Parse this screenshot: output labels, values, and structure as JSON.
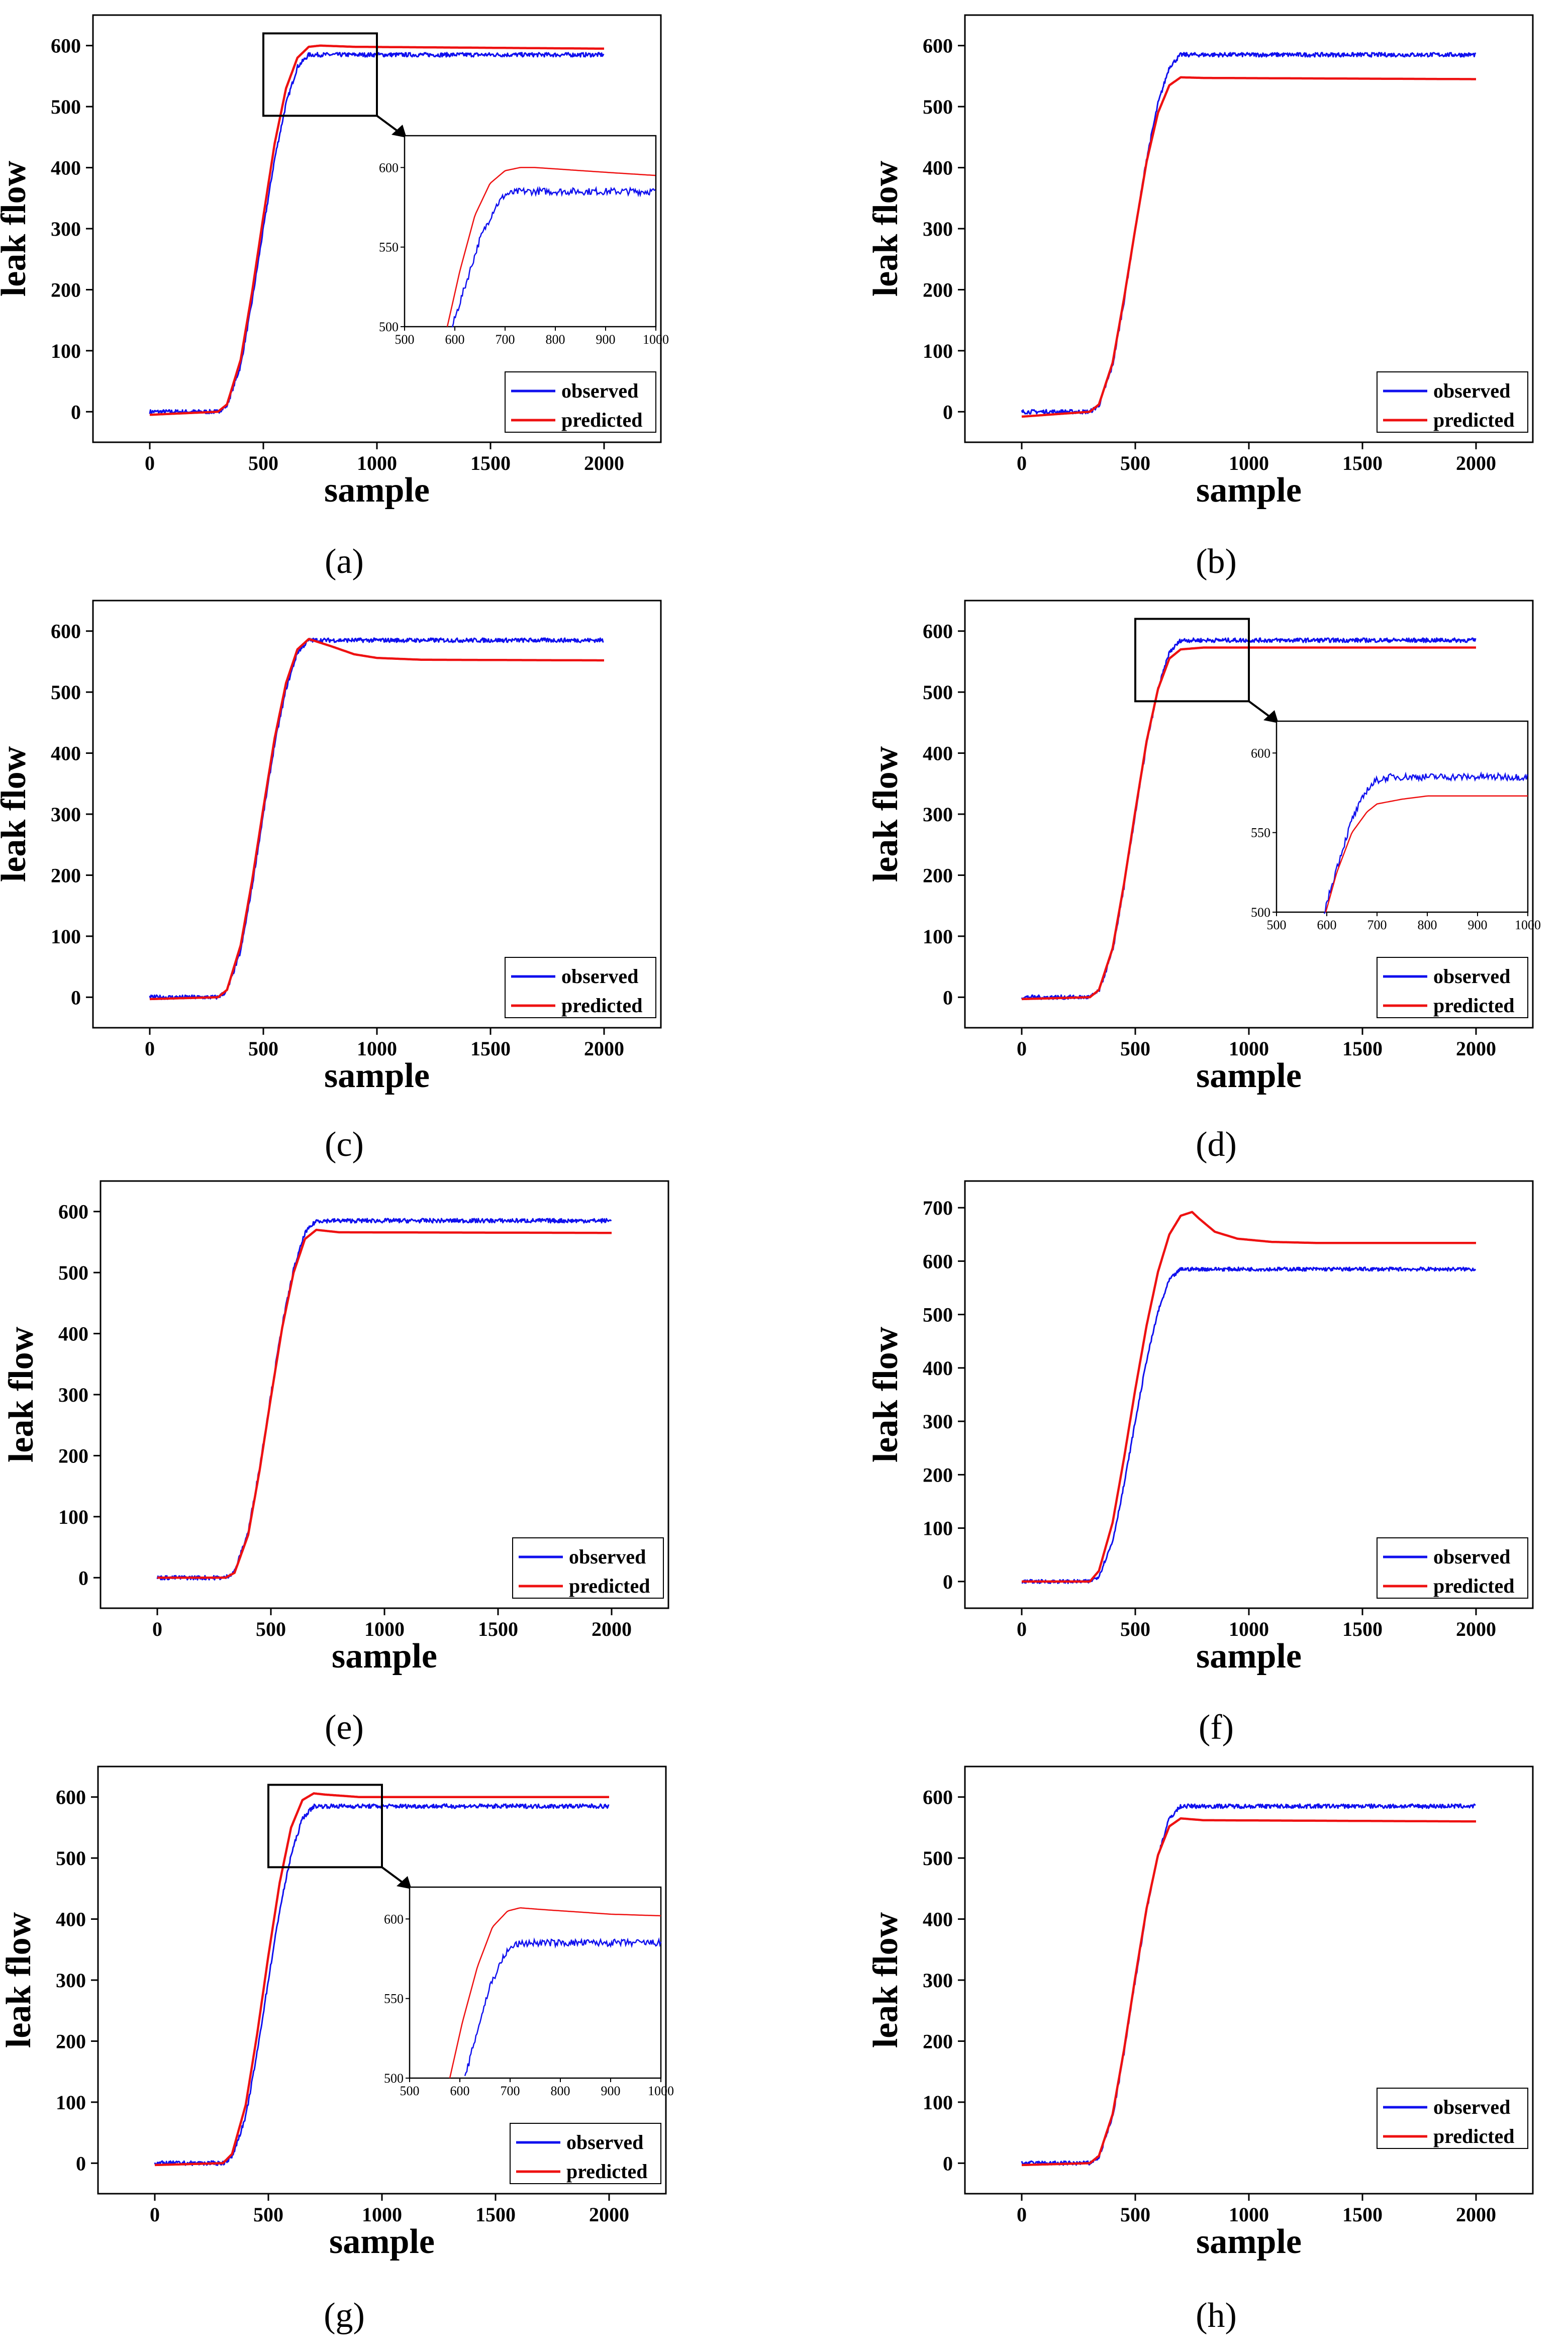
{
  "colors": {
    "observed": "#1010ee",
    "predicted": "#ee1111",
    "axis": "#000000",
    "background": "#ffffff"
  },
  "chart_data": [
    {
      "id": "a",
      "type": "line",
      "caption": "(a)",
      "xlabel": "sample",
      "ylabel": "leak flow",
      "xlim": [
        -250,
        2250
      ],
      "ylim": [
        -50,
        650
      ],
      "xticks": [
        0,
        500,
        1000,
        1500,
        2000
      ],
      "yticks": [
        0,
        100,
        200,
        300,
        400,
        500,
        600
      ],
      "legend": "bottom-right",
      "grid": false,
      "series": [
        {
          "name": "observed",
          "x": [
            0,
            300,
            340,
            400,
            450,
            500,
            550,
            600,
            650,
            700,
            2000
          ],
          "y": [
            0,
            0,
            10,
            75,
            180,
            300,
            415,
            505,
            565,
            585,
            585
          ]
        },
        {
          "name": "predicted",
          "x": [
            0,
            300,
            340,
            400,
            450,
            500,
            550,
            600,
            650,
            700,
            750,
            900,
            2000
          ],
          "y": [
            -5,
            0,
            12,
            85,
            195,
            320,
            440,
            530,
            580,
            598,
            600,
            598,
            595
          ]
        }
      ],
      "zoom_box": {
        "xlim": [
          500,
          1000
        ],
        "ylim": [
          485,
          620
        ]
      },
      "inset": {
        "xlim": [
          500,
          1000
        ],
        "ylim": [
          500,
          620
        ],
        "xticks": [
          500,
          600,
          700,
          800,
          900,
          1000
        ],
        "yticks": [
          500,
          550,
          600
        ],
        "series": [
          {
            "name": "observed",
            "x": [
              595,
              620,
              650,
              680,
              700,
              730,
              1000
            ],
            "y": [
              500,
              525,
              555,
              575,
              583,
              585,
              585
            ]
          },
          {
            "name": "predicted",
            "x": [
              585,
              610,
              640,
              670,
              700,
              730,
              760,
              900,
              1000
            ],
            "y": [
              500,
              535,
              570,
              590,
              598,
              600,
              600,
              597,
              595
            ]
          }
        ]
      }
    },
    {
      "id": "b",
      "type": "line",
      "caption": "(b)",
      "xlabel": "sample",
      "ylabel": "leak flow",
      "xlim": [
        -250,
        2250
      ],
      "ylim": [
        -50,
        650
      ],
      "xticks": [
        0,
        500,
        1000,
        1500,
        2000
      ],
      "yticks": [
        0,
        100,
        200,
        300,
        400,
        500,
        600
      ],
      "legend": "bottom-right",
      "grid": false,
      "series": [
        {
          "name": "observed",
          "x": [
            0,
            300,
            340,
            400,
            450,
            500,
            550,
            600,
            650,
            700,
            2000
          ],
          "y": [
            0,
            0,
            10,
            75,
            180,
            300,
            415,
            505,
            565,
            585,
            585
          ]
        },
        {
          "name": "predicted",
          "x": [
            0,
            300,
            340,
            400,
            450,
            500,
            550,
            600,
            650,
            700,
            800,
            2000
          ],
          "y": [
            -8,
            0,
            12,
            80,
            185,
            300,
            410,
            490,
            535,
            548,
            547,
            545
          ]
        }
      ]
    },
    {
      "id": "c",
      "type": "line",
      "caption": "(c)",
      "xlabel": "sample",
      "ylabel": "leak flow",
      "xlim": [
        -250,
        2250
      ],
      "ylim": [
        -50,
        650
      ],
      "xticks": [
        0,
        500,
        1000,
        1500,
        2000
      ],
      "yticks": [
        0,
        100,
        200,
        300,
        400,
        500,
        600
      ],
      "legend": "bottom-right",
      "grid": false,
      "series": [
        {
          "name": "observed",
          "x": [
            0,
            300,
            340,
            400,
            450,
            500,
            550,
            600,
            650,
            700,
            2000
          ],
          "y": [
            0,
            0,
            10,
            75,
            180,
            300,
            415,
            505,
            565,
            585,
            585
          ]
        },
        {
          "name": "predicted",
          "x": [
            0,
            300,
            340,
            400,
            450,
            500,
            550,
            600,
            650,
            700,
            800,
            900,
            1000,
            1200,
            2000
          ],
          "y": [
            -3,
            0,
            12,
            85,
            190,
            310,
            425,
            515,
            570,
            587,
            575,
            562,
            556,
            553,
            552
          ]
        }
      ]
    },
    {
      "id": "d",
      "type": "line",
      "caption": "(d)",
      "xlabel": "sample",
      "ylabel": "leak flow",
      "xlim": [
        -250,
        2250
      ],
      "ylim": [
        -50,
        650
      ],
      "xticks": [
        0,
        500,
        1000,
        1500,
        2000
      ],
      "yticks": [
        0,
        100,
        200,
        300,
        400,
        500,
        600
      ],
      "legend": "bottom-right",
      "grid": false,
      "series": [
        {
          "name": "observed",
          "x": [
            0,
            300,
            340,
            400,
            450,
            500,
            550,
            600,
            650,
            700,
            2000
          ],
          "y": [
            0,
            0,
            10,
            75,
            180,
            300,
            415,
            505,
            565,
            585,
            585
          ]
        },
        {
          "name": "predicted",
          "x": [
            0,
            300,
            340,
            400,
            450,
            500,
            550,
            600,
            650,
            700,
            800,
            2000
          ],
          "y": [
            -3,
            0,
            12,
            80,
            185,
            305,
            420,
            505,
            555,
            570,
            573,
            573
          ]
        }
      ],
      "zoom_box": {
        "xlim": [
          500,
          1000
        ],
        "ylim": [
          485,
          620
        ]
      },
      "inset": {
        "xlim": [
          500,
          1000
        ],
        "ylim": [
          500,
          620
        ],
        "xticks": [
          500,
          600,
          700,
          800,
          900,
          1000
        ],
        "yticks": [
          500,
          550,
          600
        ],
        "series": [
          {
            "name": "observed",
            "x": [
              595,
              620,
              650,
              680,
              700,
              730,
              1000
            ],
            "y": [
              500,
              528,
              558,
              577,
              583,
              585,
              585
            ]
          },
          {
            "name": "predicted",
            "x": [
              598,
              620,
              650,
              680,
              700,
              750,
              800,
              1000
            ],
            "y": [
              500,
              525,
              550,
              563,
              568,
              571,
              573,
              573
            ]
          }
        ]
      }
    },
    {
      "id": "e",
      "type": "line",
      "caption": "(e)",
      "xlabel": "sample",
      "ylabel": "leak flow",
      "xlim": [
        -250,
        2250
      ],
      "ylim": [
        -50,
        650
      ],
      "xticks": [
        0,
        500,
        1000,
        1500,
        2000
      ],
      "yticks": [
        0,
        100,
        200,
        300,
        400,
        500,
        600
      ],
      "legend": "bottom-right",
      "grid": false,
      "series": [
        {
          "name": "observed",
          "x": [
            0,
            300,
            340,
            400,
            450,
            500,
            550,
            600,
            650,
            700,
            2000
          ],
          "y": [
            0,
            0,
            10,
            75,
            180,
            300,
            415,
            505,
            565,
            585,
            585
          ]
        },
        {
          "name": "predicted",
          "x": [
            0,
            300,
            340,
            400,
            450,
            500,
            550,
            600,
            650,
            700,
            800,
            2000
          ],
          "y": [
            0,
            0,
            8,
            70,
            175,
            295,
            410,
            500,
            555,
            570,
            566,
            565
          ]
        }
      ]
    },
    {
      "id": "f",
      "type": "line",
      "caption": "(f)",
      "xlabel": "sample",
      "ylabel": "leak flow",
      "xlim": [
        -250,
        2250
      ],
      "ylim": [
        -50,
        750
      ],
      "xticks": [
        0,
        500,
        1000,
        1500,
        2000
      ],
      "yticks": [
        0,
        100,
        200,
        300,
        400,
        500,
        600,
        700
      ],
      "legend": "bottom-right",
      "grid": false,
      "series": [
        {
          "name": "observed",
          "x": [
            0,
            300,
            340,
            400,
            450,
            500,
            550,
            600,
            650,
            700,
            2000
          ],
          "y": [
            0,
            0,
            10,
            75,
            180,
            300,
            415,
            505,
            565,
            585,
            585
          ]
        },
        {
          "name": "predicted",
          "x": [
            0,
            300,
            340,
            400,
            450,
            500,
            550,
            600,
            650,
            700,
            750,
            780,
            850,
            950,
            1100,
            1300,
            2000
          ],
          "y": [
            0,
            0,
            20,
            110,
            230,
            360,
            480,
            580,
            650,
            685,
            692,
            680,
            655,
            642,
            636,
            634,
            634
          ]
        }
      ]
    },
    {
      "id": "g",
      "type": "line",
      "caption": "(g)",
      "xlabel": "sample",
      "ylabel": "leak flow",
      "xlim": [
        -250,
        2250
      ],
      "ylim": [
        -50,
        650
      ],
      "xticks": [
        0,
        500,
        1000,
        1500,
        2000
      ],
      "yticks": [
        0,
        100,
        200,
        300,
        400,
        500,
        600
      ],
      "legend": "bottom-right",
      "grid": false,
      "series": [
        {
          "name": "observed",
          "x": [
            0,
            300,
            340,
            400,
            450,
            500,
            550,
            600,
            650,
            700,
            2000
          ],
          "y": [
            0,
            0,
            10,
            75,
            180,
            300,
            415,
            505,
            565,
            585,
            585
          ]
        },
        {
          "name": "predicted",
          "x": [
            0,
            300,
            340,
            400,
            450,
            500,
            550,
            600,
            650,
            700,
            750,
            900,
            2000
          ],
          "y": [
            -3,
            0,
            15,
            95,
            210,
            340,
            460,
            550,
            595,
            606,
            604,
            600,
            600
          ]
        }
      ],
      "zoom_box": {
        "xlim": [
          500,
          1000
        ],
        "ylim": [
          485,
          620
        ]
      },
      "inset": {
        "xlim": [
          500,
          1000
        ],
        "ylim": [
          500,
          620
        ],
        "xticks": [
          500,
          600,
          700,
          800,
          900,
          1000
        ],
        "yticks": [
          500,
          550,
          600
        ],
        "series": [
          {
            "name": "observed",
            "x": [
              610,
              635,
              660,
              690,
              710,
              740,
              1000
            ],
            "y": [
              500,
              530,
              558,
              578,
              584,
              585,
              585
            ]
          },
          {
            "name": "predicted",
            "x": [
              580,
              605,
              635,
              665,
              695,
              720,
              760,
              900,
              1000
            ],
            "y": [
              500,
              535,
              570,
              595,
              605,
              607,
              606,
              603,
              602
            ]
          }
        ]
      }
    },
    {
      "id": "h",
      "type": "line",
      "caption": "(h)",
      "xlabel": "sample",
      "ylabel": "leak flow",
      "xlim": [
        -250,
        2250
      ],
      "ylim": [
        -50,
        650
      ],
      "xticks": [
        0,
        500,
        1000,
        1500,
        2000
      ],
      "yticks": [
        0,
        100,
        200,
        300,
        400,
        500,
        600
      ],
      "legend": "top-right",
      "grid": false,
      "series": [
        {
          "name": "observed",
          "x": [
            0,
            300,
            340,
            400,
            450,
            500,
            550,
            600,
            650,
            700,
            2000
          ],
          "y": [
            0,
            0,
            10,
            75,
            180,
            300,
            415,
            505,
            565,
            585,
            585
          ]
        },
        {
          "name": "predicted",
          "x": [
            0,
            300,
            340,
            400,
            450,
            500,
            550,
            600,
            650,
            700,
            800,
            2000
          ],
          "y": [
            -3,
            0,
            12,
            80,
            185,
            305,
            418,
            505,
            552,
            565,
            562,
            560
          ]
        }
      ]
    }
  ]
}
